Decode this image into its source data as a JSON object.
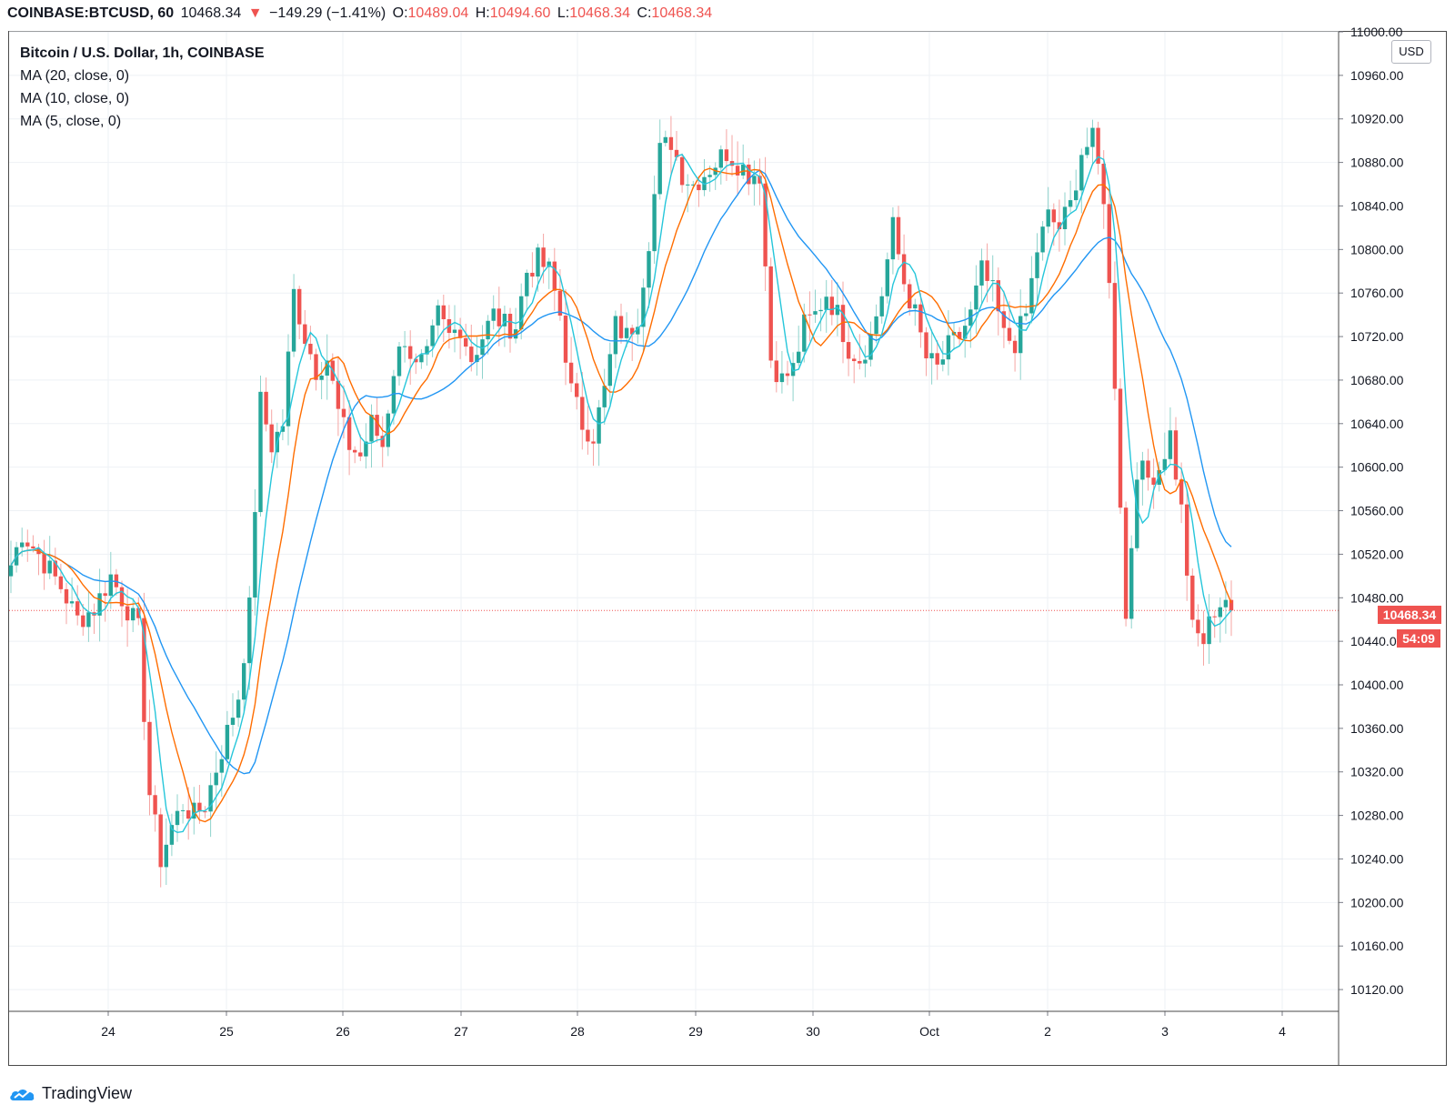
{
  "header": {
    "symbol": "COINBASE:BTCUSD, 60",
    "last": "10468.34",
    "change_arrow": "▼",
    "change": "−149.29 (−1.41%)",
    "o_label": "O:",
    "o_value": "10489.04",
    "h_label": "H:",
    "h_value": "10494.60",
    "l_label": "L:",
    "l_value": "10468.34",
    "c_label": "C:",
    "c_value": "10468.34"
  },
  "legend": {
    "title": "Bitcoin / U.S. Dollar, 1h, COINBASE",
    "ma20": "MA (20, close, 0)",
    "ma10": "MA (10, close, 0)",
    "ma5": "MA (5, close, 0)"
  },
  "currency": "USD",
  "price_tag": "10468.34",
  "countdown": "54:09",
  "brand": "TradingView",
  "colors": {
    "up": "#26a69a",
    "down": "#ef5350",
    "ma20": "#2196f3",
    "ma10": "#ff6d00",
    "ma5": "#26c6da",
    "grid": "#eef1f5"
  },
  "chart_data": {
    "type": "candlestick",
    "x_ticks": [
      "24",
      "25",
      "26",
      "27",
      "28",
      "29",
      "30",
      "Oct",
      "2",
      "3",
      "4"
    ],
    "y_ticks": [
      "11000.00",
      "10960.00",
      "10920.00",
      "10880.00",
      "10840.00",
      "10800.00",
      "10760.00",
      "10720.00",
      "10680.00",
      "10640.00",
      "10600.00",
      "10560.00",
      "10520.00",
      "10480.00",
      "10440.00",
      "10400.00",
      "10360.00",
      "10320.00",
      "10280.00",
      "10240.00",
      "10200.00",
      "10160.00",
      "10120.00"
    ],
    "ylim": [
      10100,
      11000
    ],
    "last_price": 10468.34,
    "anchors": [
      [
        0,
        10510
      ],
      [
        2,
        10540
      ],
      [
        5,
        10520
      ],
      [
        9,
        10490
      ],
      [
        12,
        10460
      ],
      [
        15,
        10470
      ],
      [
        18,
        10500
      ],
      [
        21,
        10470
      ],
      [
        23,
        10450
      ],
      [
        25,
        10300
      ],
      [
        27,
        10240
      ],
      [
        29,
        10270
      ],
      [
        31,
        10290
      ],
      [
        33,
        10280
      ],
      [
        35,
        10290
      ],
      [
        38,
        10340
      ],
      [
        41,
        10390
      ],
      [
        43,
        10470
      ],
      [
        45,
        10660
      ],
      [
        47,
        10620
      ],
      [
        49,
        10640
      ],
      [
        51,
        10760
      ],
      [
        53,
        10720
      ],
      [
        55,
        10690
      ],
      [
        57,
        10700
      ],
      [
        59,
        10650
      ],
      [
        61,
        10620
      ],
      [
        63,
        10610
      ],
      [
        65,
        10640
      ],
      [
        67,
        10620
      ],
      [
        69,
        10690
      ],
      [
        71,
        10720
      ],
      [
        73,
        10690
      ],
      [
        75,
        10700
      ],
      [
        77,
        10740
      ],
      [
        79,
        10720
      ],
      [
        81,
        10730
      ],
      [
        83,
        10700
      ],
      [
        85,
        10720
      ],
      [
        87,
        10740
      ],
      [
        89,
        10730
      ],
      [
        91,
        10730
      ],
      [
        93,
        10780
      ],
      [
        95,
        10790
      ],
      [
        97,
        10780
      ],
      [
        99,
        10740
      ],
      [
        101,
        10670
      ],
      [
        103,
        10640
      ],
      [
        105,
        10630
      ],
      [
        107,
        10670
      ],
      [
        109,
        10730
      ],
      [
        111,
        10720
      ],
      [
        113,
        10740
      ],
      [
        115,
        10810
      ],
      [
        117,
        10890
      ],
      [
        119,
        10900
      ],
      [
        121,
        10870
      ],
      [
        123,
        10860
      ],
      [
        125,
        10870
      ],
      [
        127,
        10880
      ],
      [
        129,
        10890
      ],
      [
        131,
        10880
      ],
      [
        133,
        10870
      ],
      [
        135,
        10870
      ],
      [
        137,
        10700
      ],
      [
        139,
        10680
      ],
      [
        141,
        10690
      ],
      [
        143,
        10730
      ],
      [
        145,
        10740
      ],
      [
        147,
        10760
      ],
      [
        149,
        10740
      ],
      [
        151,
        10710
      ],
      [
        153,
        10700
      ],
      [
        155,
        10720
      ],
      [
        157,
        10760
      ],
      [
        159,
        10820
      ],
      [
        161,
        10770
      ],
      [
        163,
        10740
      ],
      [
        165,
        10700
      ],
      [
        167,
        10690
      ],
      [
        169,
        10710
      ],
      [
        171,
        10720
      ],
      [
        173,
        10740
      ],
      [
        175,
        10780
      ],
      [
        177,
        10760
      ],
      [
        179,
        10720
      ],
      [
        181,
        10715
      ],
      [
        183,
        10740
      ],
      [
        185,
        10800
      ],
      [
        187,
        10830
      ],
      [
        189,
        10820
      ],
      [
        191,
        10840
      ],
      [
        193,
        10890
      ],
      [
        195,
        10900
      ],
      [
        197,
        10850
      ],
      [
        199,
        10680
      ],
      [
        201,
        10460
      ],
      [
        203,
        10600
      ],
      [
        205,
        10590
      ],
      [
        207,
        10600
      ],
      [
        209,
        10630
      ],
      [
        211,
        10560
      ],
      [
        213,
        10450
      ],
      [
        215,
        10440
      ],
      [
        217,
        10470
      ],
      [
        219,
        10480
      ],
      [
        220,
        10468
      ]
    ]
  }
}
